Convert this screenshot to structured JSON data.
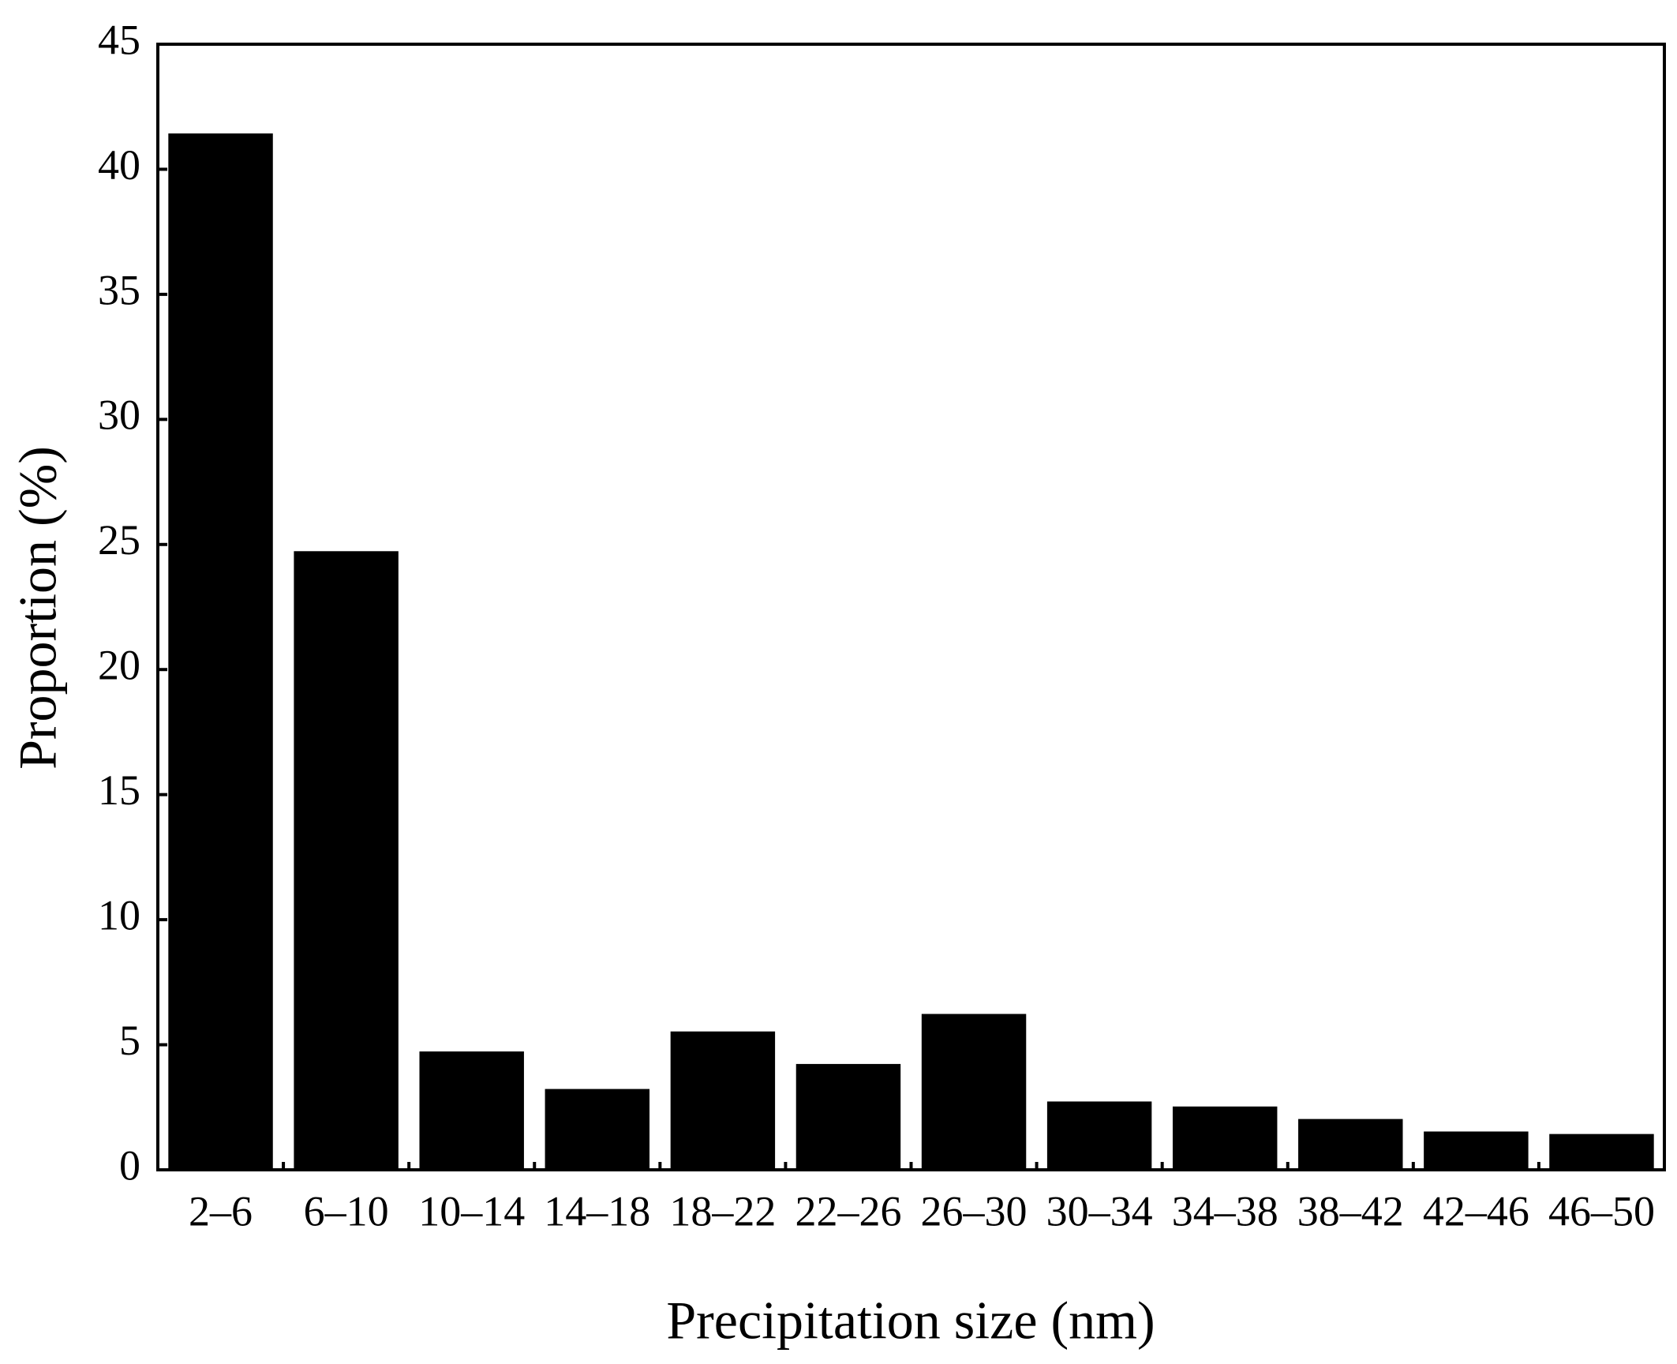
{
  "chart_data": {
    "type": "bar",
    "xlabel": "Precipitation size (nm)",
    "ylabel": "Proportion (%)",
    "categories": [
      "2–6",
      "6–10",
      "10–14",
      "14–18",
      "18–22",
      "22–26",
      "26–30",
      "30–34",
      "34–38",
      "38–42",
      "42–46",
      "46–50"
    ],
    "values": [
      41.4,
      24.7,
      4.7,
      3.2,
      5.5,
      4.2,
      6.2,
      2.7,
      2.5,
      2.0,
      1.5,
      1.4
    ],
    "color": "#000000",
    "ylim": [
      0,
      45
    ],
    "yticks": [
      0,
      5,
      10,
      15,
      20,
      25,
      30,
      35,
      40,
      45
    ],
    "grid": false
  }
}
